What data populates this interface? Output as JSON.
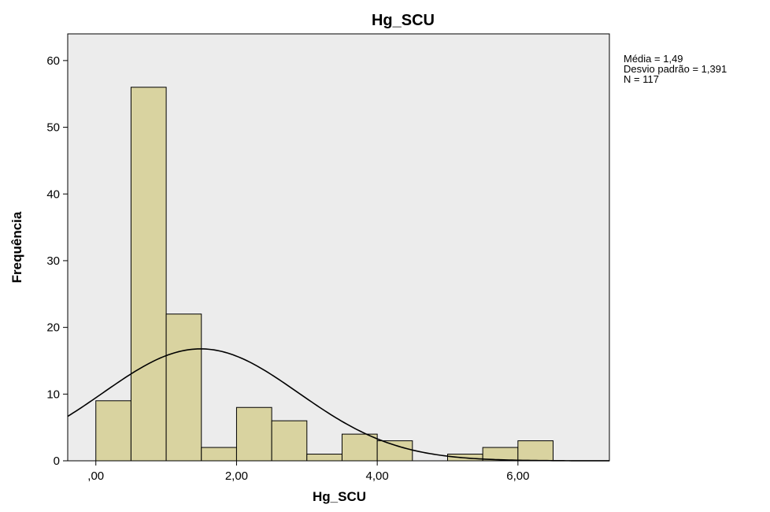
{
  "chart_data": {
    "type": "bar",
    "subtype": "histogram",
    "title": "Hg_SCU",
    "xlabel": "Hg_SCU",
    "ylabel": "Frequência",
    "xlim": [
      -0.4,
      7.3
    ],
    "ylim": [
      0,
      64
    ],
    "x_ticks": [
      0,
      2,
      4,
      6
    ],
    "x_tick_labels": [
      ",00",
      "2,00",
      "4,00",
      "6,00"
    ],
    "y_ticks": [
      0,
      10,
      20,
      30,
      40,
      50,
      60
    ],
    "y_tick_labels": [
      "0",
      "10",
      "20",
      "30",
      "40",
      "50",
      "60"
    ],
    "bin_width": 0.5,
    "bins": [
      {
        "start": 0.0,
        "end": 0.5,
        "count": 9
      },
      {
        "start": 0.5,
        "end": 1.0,
        "count": 56
      },
      {
        "start": 1.0,
        "end": 1.5,
        "count": 22
      },
      {
        "start": 1.5,
        "end": 2.0,
        "count": 2
      },
      {
        "start": 2.0,
        "end": 2.5,
        "count": 8
      },
      {
        "start": 2.5,
        "end": 3.0,
        "count": 6
      },
      {
        "start": 3.0,
        "end": 3.5,
        "count": 1
      },
      {
        "start": 3.5,
        "end": 4.0,
        "count": 4
      },
      {
        "start": 4.0,
        "end": 4.5,
        "count": 3
      },
      {
        "start": 4.5,
        "end": 5.0,
        "count": 0
      },
      {
        "start": 5.0,
        "end": 5.5,
        "count": 1
      },
      {
        "start": 5.5,
        "end": 6.0,
        "count": 2
      },
      {
        "start": 6.0,
        "end": 6.5,
        "count": 3
      }
    ],
    "normal_curve": {
      "mean": 1.49,
      "std": 1.391,
      "n": 117
    },
    "stats_text": [
      "Média = 1,49",
      "Desvio padrão = 1,391",
      "N = 117"
    ],
    "grid": false,
    "colors": {
      "plot_background": "#ececec",
      "bar_fill": "#d9d3a0",
      "bar_stroke": "#000000",
      "curve": "#000000"
    }
  }
}
